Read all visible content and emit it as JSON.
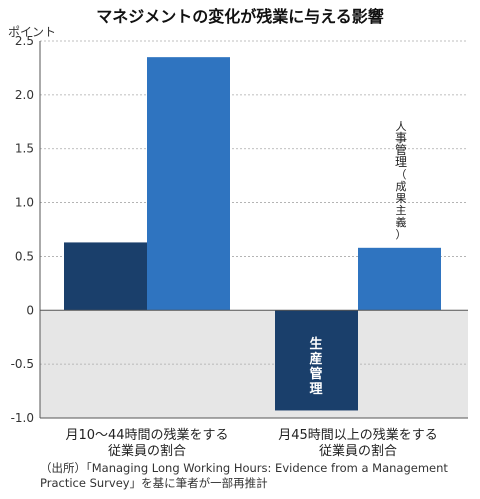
{
  "chart_data": {
    "type": "bar",
    "title": "マネジメントの変化が残業に与える影響",
    "ylabel": "ポイント",
    "ylim": [
      -1.0,
      2.5
    ],
    "yticks": [
      "2.5",
      "2.0",
      "1.5",
      "1.0",
      "0.5",
      "0",
      "-0.5",
      "-1.0"
    ],
    "categories": [
      [
        "月10〜44時間の残業をする",
        "従業員の割合"
      ],
      [
        "月45時間以上の残業をする",
        "従業員の割合"
      ]
    ],
    "series": [
      {
        "name": "生産管理",
        "values": [
          0.63,
          -0.93
        ],
        "color": "#1a3f6b"
      },
      {
        "name": "人事管理（成果主義）",
        "values": [
          2.35,
          0.58
        ],
        "color": "#2f74c0"
      }
    ],
    "label_lines": {
      "hr": [
        "人",
        "事",
        "管",
        "理",
        "（",
        "成",
        "果",
        "主",
        "義",
        "）"
      ],
      "prod": [
        "生",
        "産",
        "管",
        "理"
      ]
    },
    "gridlines": true,
    "negative_band_color": "#e6e6e6",
    "source": "（出所）「Managing Long Working Hours: Evidence from a Management Practice Survey」を基に筆者が一部再推計"
  }
}
